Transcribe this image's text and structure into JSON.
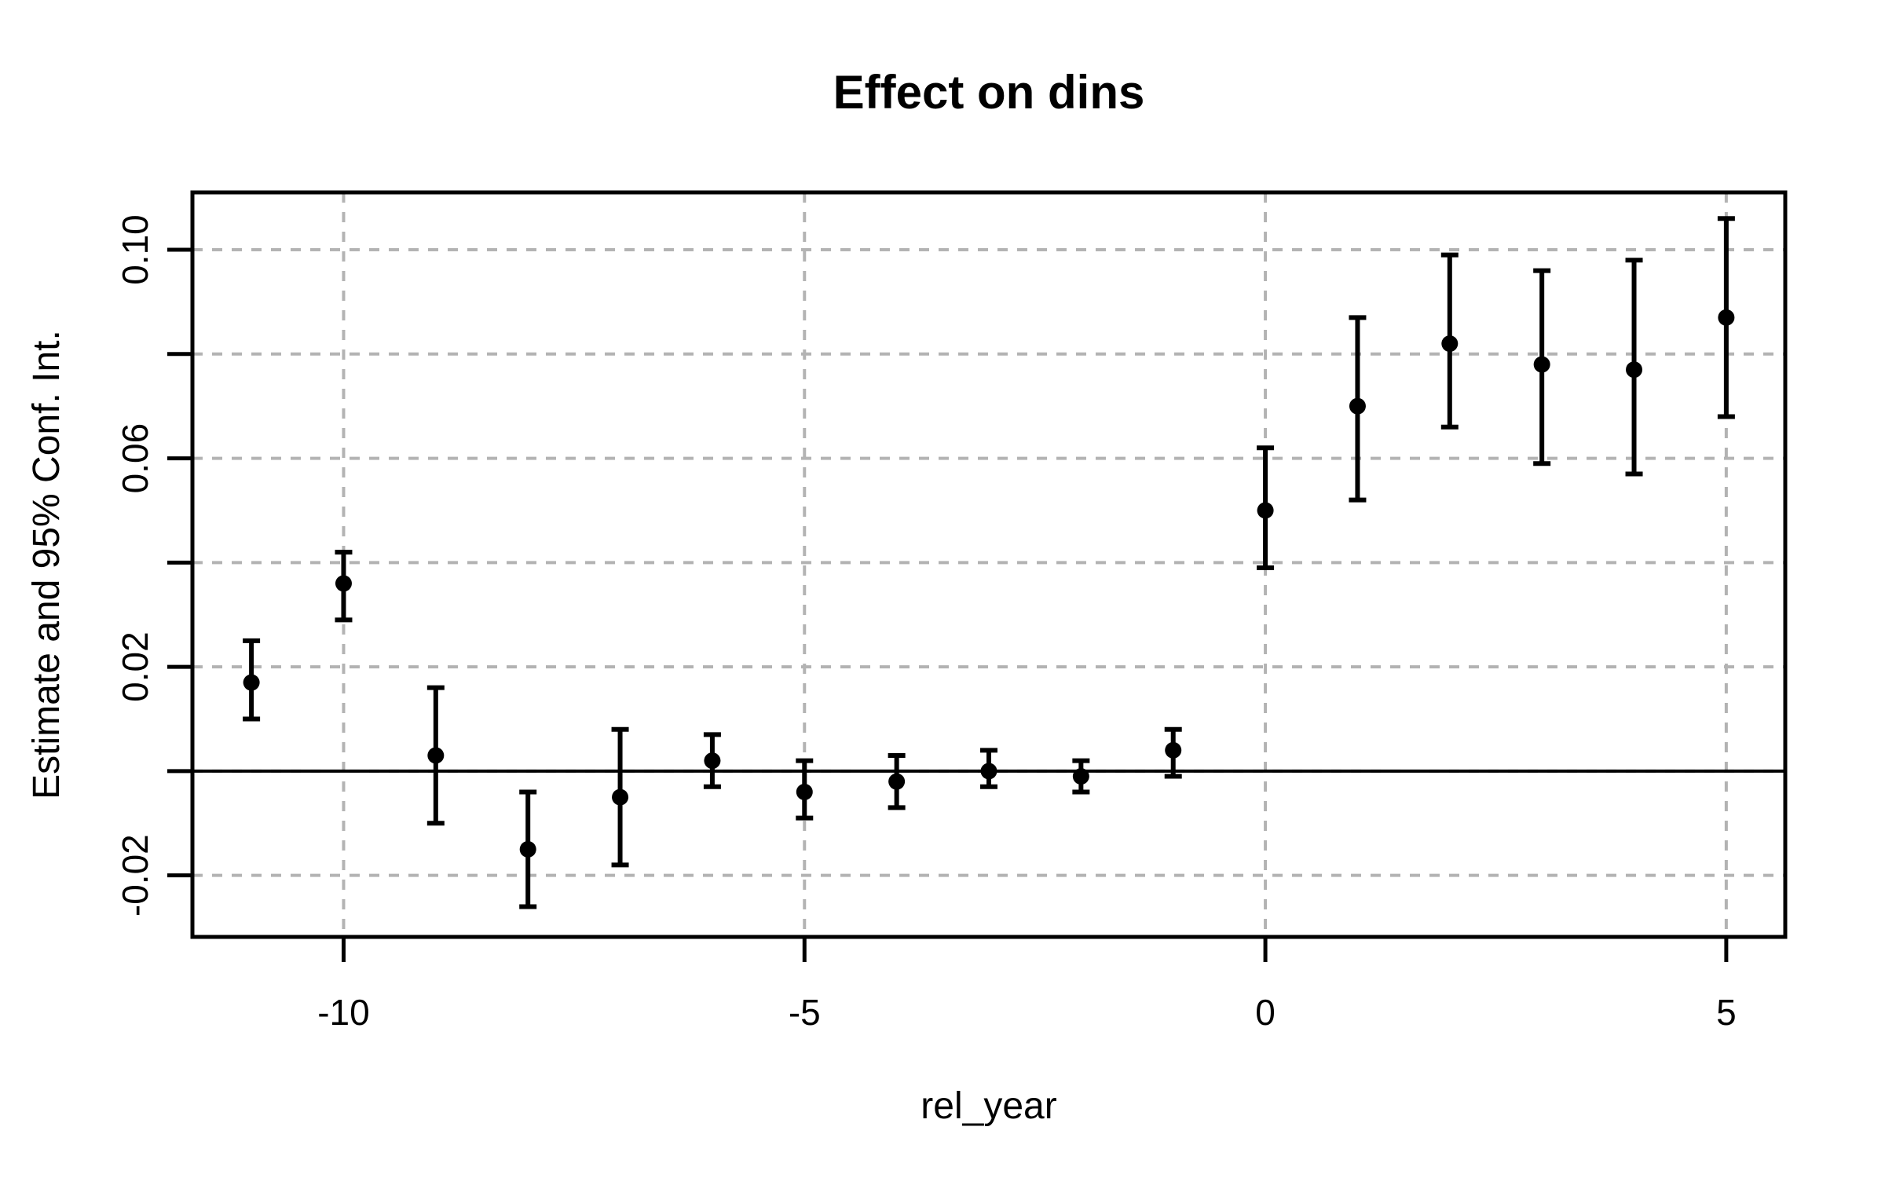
{
  "chart_data": {
    "type": "scatter",
    "variant": "event-study-point-estimates-with-error-bars",
    "title": "Effect on dins",
    "xlabel": "rel_year",
    "ylabel": "Estimate and 95% Conf. Int.",
    "xlim": [
      -11.64,
      5.64
    ],
    "ylim": [
      -0.0318,
      0.111
    ],
    "grid": {
      "visible": true,
      "style": "dashed",
      "color": "#b3b3b3"
    },
    "zero_line_y": 0,
    "legend": "none",
    "x_ticks": [
      {
        "value": -10,
        "label": "-10"
      },
      {
        "value": -5,
        "label": "-5"
      },
      {
        "value": 0,
        "label": "0"
      },
      {
        "value": 5,
        "label": "5"
      }
    ],
    "y_ticks": [
      {
        "value": -0.02,
        "label": "-0.02"
      },
      {
        "value": 0.0,
        "label": ""
      },
      {
        "value": 0.02,
        "label": "0.02"
      },
      {
        "value": 0.04,
        "label": ""
      },
      {
        "value": 0.06,
        "label": "0.06"
      },
      {
        "value": 0.08,
        "label": ""
      },
      {
        "value": 0.1,
        "label": "0.10"
      }
    ],
    "series": [
      {
        "name": "estimate",
        "marker": "filled-circle",
        "color": "#000000",
        "points": [
          {
            "x": -11,
            "y": 0.017,
            "ci_low": 0.01,
            "ci_high": 0.025
          },
          {
            "x": -10,
            "y": 0.036,
            "ci_low": 0.029,
            "ci_high": 0.042
          },
          {
            "x": -9,
            "y": 0.003,
            "ci_low": -0.01,
            "ci_high": 0.016
          },
          {
            "x": -8,
            "y": -0.015,
            "ci_low": -0.026,
            "ci_high": -0.004
          },
          {
            "x": -7,
            "y": -0.005,
            "ci_low": -0.018,
            "ci_high": 0.008
          },
          {
            "x": -6,
            "y": 0.002,
            "ci_low": -0.003,
            "ci_high": 0.007
          },
          {
            "x": -5,
            "y": -0.004,
            "ci_low": -0.009,
            "ci_high": 0.002
          },
          {
            "x": -4,
            "y": -0.002,
            "ci_low": -0.007,
            "ci_high": 0.003
          },
          {
            "x": -3,
            "y": 0.0,
            "ci_low": -0.003,
            "ci_high": 0.004
          },
          {
            "x": -2,
            "y": -0.001,
            "ci_low": -0.004,
            "ci_high": 0.002
          },
          {
            "x": -1,
            "y": 0.004,
            "ci_low": -0.001,
            "ci_high": 0.008
          },
          {
            "x": 0,
            "y": 0.05,
            "ci_low": 0.039,
            "ci_high": 0.062
          },
          {
            "x": 1,
            "y": 0.07,
            "ci_low": 0.052,
            "ci_high": 0.087
          },
          {
            "x": 2,
            "y": 0.082,
            "ci_low": 0.066,
            "ci_high": 0.099
          },
          {
            "x": 3,
            "y": 0.078,
            "ci_low": 0.059,
            "ci_high": 0.096
          },
          {
            "x": 4,
            "y": 0.077,
            "ci_low": 0.057,
            "ci_high": 0.098
          },
          {
            "x": 5,
            "y": 0.087,
            "ci_low": 0.068,
            "ci_high": 0.106
          }
        ]
      }
    ]
  },
  "colors": {
    "background": "#ffffff",
    "axis": "#000000",
    "point": "#000000",
    "grid": "#b3b3b3"
  }
}
